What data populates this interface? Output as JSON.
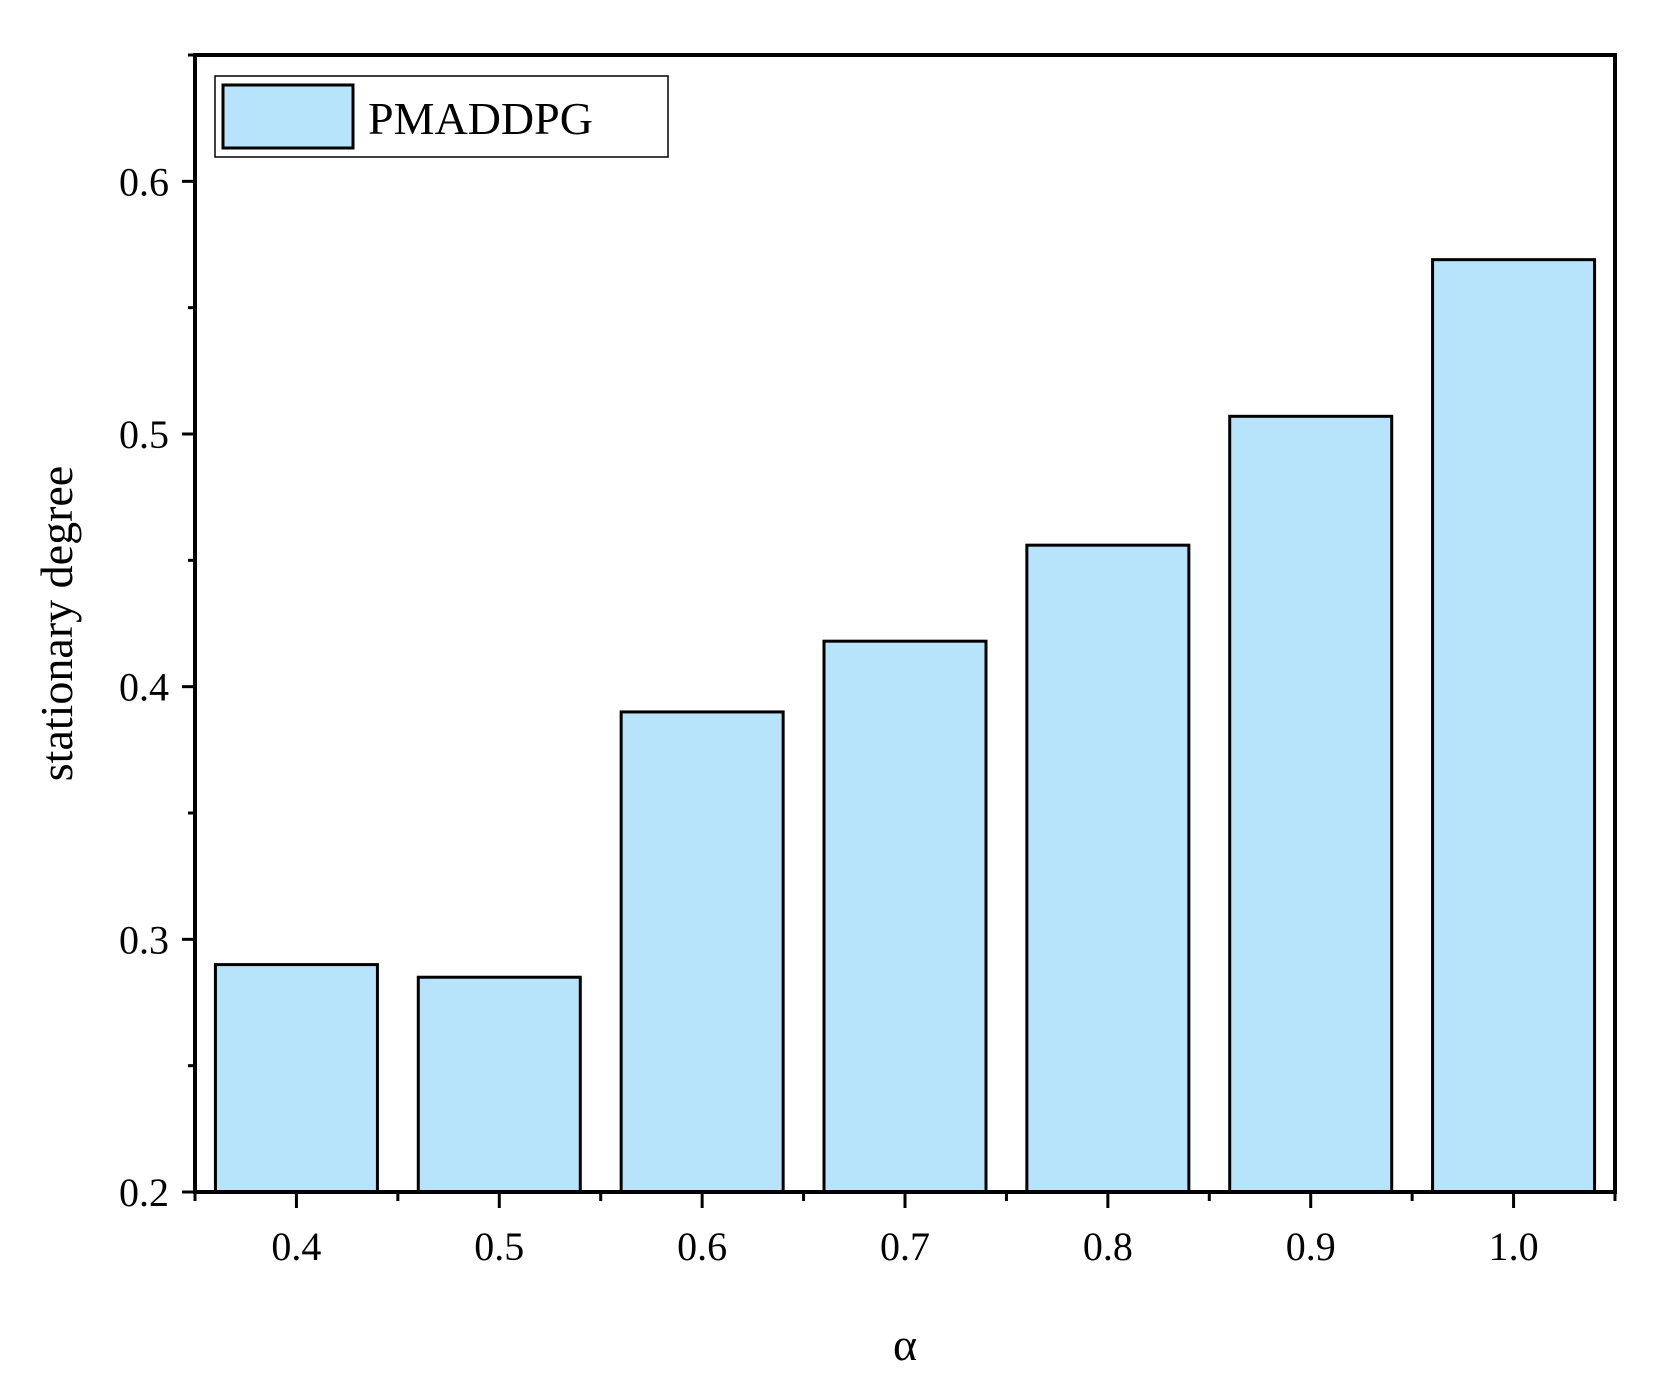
{
  "chart_data": {
    "type": "bar",
    "categories": [
      "0.4",
      "0.5",
      "0.6",
      "0.7",
      "0.8",
      "0.9",
      "1.0"
    ],
    "series": [
      {
        "name": "PMADDPG",
        "values": [
          0.29,
          0.285,
          0.39,
          0.418,
          0.456,
          0.507,
          0.569
        ],
        "color": "#b8e4fb"
      }
    ],
    "xlabel": "α",
    "ylabel": "stationary degree",
    "ylim": [
      0.2,
      0.65
    ],
    "yticks": [
      "0.2",
      "0.3",
      "0.4",
      "0.5",
      "0.6"
    ],
    "grid": false,
    "legend": "top-left"
  }
}
